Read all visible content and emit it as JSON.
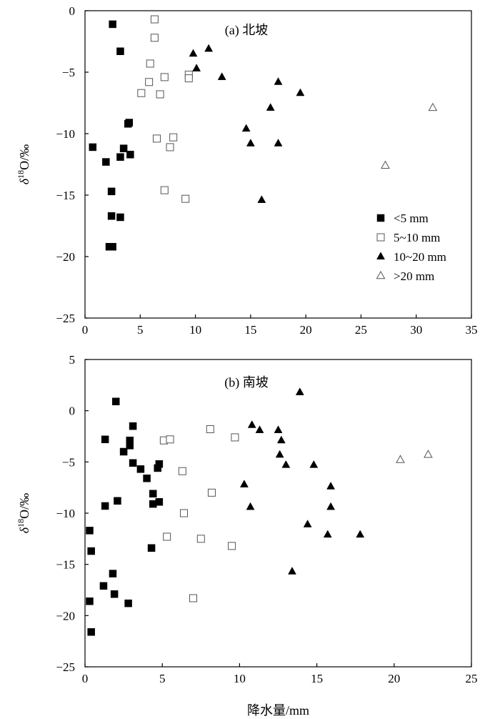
{
  "chart_data": [
    {
      "type": "scatter",
      "title": "(a) 北坡",
      "xlabel": "",
      "ylabel": "δ18O/‰",
      "xlim": [
        0,
        35
      ],
      "ylim": [
        -25,
        0
      ],
      "xticks": [
        0,
        5,
        10,
        15,
        20,
        25,
        30,
        35
      ],
      "yticks": [
        0,
        -5,
        -10,
        -15,
        -20,
        -25
      ],
      "grid": false,
      "legend": "right-middle",
      "series": [
        {
          "name": "<5 mm",
          "marker": "square-filled",
          "points": [
            [
              2.5,
              -1.1
            ],
            [
              3.2,
              -3.3
            ],
            [
              3.9,
              -9.2
            ],
            [
              4.0,
              -9.1
            ],
            [
              0.7,
              -11.1
            ],
            [
              1.9,
              -12.3
            ],
            [
              3.2,
              -11.9
            ],
            [
              3.5,
              -11.2
            ],
            [
              4.1,
              -11.7
            ],
            [
              2.4,
              -14.7
            ],
            [
              2.4,
              -16.7
            ],
            [
              3.2,
              -16.8
            ],
            [
              2.2,
              -19.2
            ],
            [
              2.5,
              -19.2
            ]
          ]
        },
        {
          "name": "5~10 mm",
          "marker": "square-open",
          "points": [
            [
              6.3,
              -0.7
            ],
            [
              6.3,
              -2.2
            ],
            [
              5.9,
              -4.3
            ],
            [
              5.8,
              -5.8
            ],
            [
              7.2,
              -5.4
            ],
            [
              9.4,
              -5.2
            ],
            [
              9.4,
              -5.5
            ],
            [
              5.1,
              -6.7
            ],
            [
              6.8,
              -6.8
            ],
            [
              6.5,
              -10.4
            ],
            [
              8.0,
              -10.3
            ],
            [
              7.7,
              -11.1
            ],
            [
              7.2,
              -14.6
            ],
            [
              9.1,
              -15.3
            ]
          ]
        },
        {
          "name": "10~20 mm",
          "marker": "triangle-filled",
          "points": [
            [
              9.8,
              -3.5
            ],
            [
              11.2,
              -3.1
            ],
            [
              10.1,
              -4.7
            ],
            [
              12.4,
              -5.4
            ],
            [
              17.5,
              -5.8
            ],
            [
              19.5,
              -6.7
            ],
            [
              16.8,
              -7.9
            ],
            [
              14.6,
              -9.6
            ],
            [
              15.0,
              -10.8
            ],
            [
              17.5,
              -10.8
            ],
            [
              16.0,
              -15.4
            ]
          ]
        },
        {
          "name": ">20 mm",
          "marker": "triangle-open",
          "points": [
            [
              31.5,
              -7.9
            ],
            [
              27.2,
              -12.6
            ]
          ]
        }
      ]
    },
    {
      "type": "scatter",
      "title": "(b) 南坡",
      "xlabel": "降水量/mm",
      "ylabel": "δ18O/‰",
      "xlim": [
        0,
        25
      ],
      "ylim": [
        -25,
        5
      ],
      "xticks": [
        0,
        5,
        10,
        15,
        20,
        25
      ],
      "yticks": [
        5,
        0,
        -5,
        -10,
        -15,
        -20,
        -25
      ],
      "grid": false,
      "series": [
        {
          "name": "<5 mm",
          "marker": "square-filled",
          "points": [
            [
              2.0,
              0.9
            ],
            [
              1.3,
              -2.8
            ],
            [
              3.1,
              -1.5
            ],
            [
              2.9,
              -2.9
            ],
            [
              2.9,
              -3.4
            ],
            [
              2.5,
              -4.0
            ],
            [
              3.1,
              -5.1
            ],
            [
              3.6,
              -5.7
            ],
            [
              4.0,
              -6.6
            ],
            [
              4.8,
              -5.2
            ],
            [
              4.7,
              -5.6
            ],
            [
              4.4,
              -8.1
            ],
            [
              4.4,
              -9.1
            ],
            [
              4.8,
              -8.9
            ],
            [
              1.3,
              -9.3
            ],
            [
              2.1,
              -8.8
            ],
            [
              0.3,
              -11.7
            ],
            [
              0.4,
              -13.7
            ],
            [
              4.3,
              -13.4
            ],
            [
              1.8,
              -15.9
            ],
            [
              1.2,
              -17.1
            ],
            [
              1.9,
              -17.9
            ],
            [
              2.8,
              -18.8
            ],
            [
              0.3,
              -18.6
            ],
            [
              0.4,
              -21.6
            ]
          ]
        },
        {
          "name": "5~10 mm",
          "marker": "square-open",
          "points": [
            [
              5.1,
              -2.9
            ],
            [
              5.5,
              -2.8
            ],
            [
              8.1,
              -1.8
            ],
            [
              9.7,
              -2.6
            ],
            [
              6.3,
              -5.9
            ],
            [
              8.2,
              -8.0
            ],
            [
              6.4,
              -10.0
            ],
            [
              5.3,
              -12.3
            ],
            [
              7.5,
              -12.5
            ],
            [
              9.5,
              -13.2
            ],
            [
              7.0,
              -18.3
            ]
          ]
        },
        {
          "name": "10~20 mm",
          "marker": "triangle-filled",
          "points": [
            [
              13.9,
              1.8
            ],
            [
              10.8,
              -1.4
            ],
            [
              11.3,
              -1.9
            ],
            [
              12.5,
              -1.9
            ],
            [
              12.7,
              -2.9
            ],
            [
              12.6,
              -4.3
            ],
            [
              13.0,
              -5.3
            ],
            [
              14.8,
              -5.3
            ],
            [
              15.9,
              -7.4
            ],
            [
              10.3,
              -7.2
            ],
            [
              10.7,
              -9.4
            ],
            [
              15.9,
              -9.4
            ],
            [
              14.4,
              -11.1
            ],
            [
              15.7,
              -12.1
            ],
            [
              17.8,
              -12.1
            ],
            [
              13.4,
              -15.7
            ]
          ]
        },
        {
          "name": ">20 mm",
          "marker": "triangle-open",
          "points": [
            [
              20.4,
              -4.8
            ],
            [
              22.2,
              -4.3
            ]
          ]
        }
      ]
    }
  ]
}
